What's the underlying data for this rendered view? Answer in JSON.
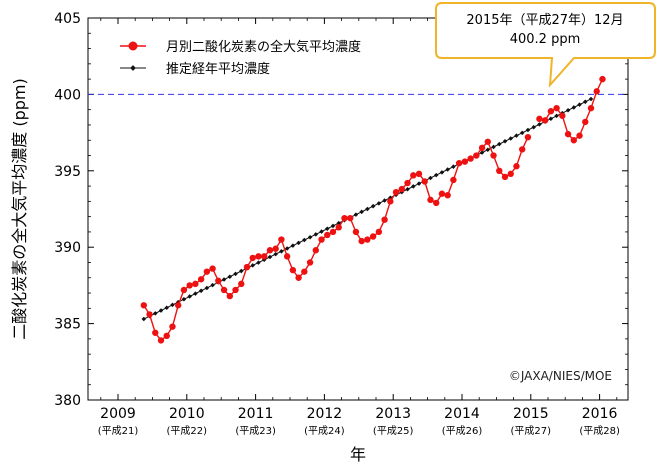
{
  "chart_data": {
    "type": "line",
    "xlabel": "年",
    "ylabel": "二酸化炭素の全大気平均濃度 (ppm)",
    "ylim": [
      380,
      405
    ],
    "yticks": [
      "380",
      "385",
      "390",
      "395",
      "400",
      "405"
    ],
    "xlim": [
      2008.8,
      2016.6
    ],
    "xticks": [
      {
        "year": 2009,
        "label": "2009",
        "era": "(平成21)"
      },
      {
        "year": 2010,
        "label": "2010",
        "era": "(平成22)"
      },
      {
        "year": 2011,
        "label": "2011",
        "era": "(平成23)"
      },
      {
        "year": 2012,
        "label": "2012",
        "era": "(平成24)"
      },
      {
        "year": 2013,
        "label": "2013",
        "era": "(平成25)"
      },
      {
        "year": 2014,
        "label": "2014",
        "era": "(平成26)"
      },
      {
        "year": 2015,
        "label": "2015",
        "era": "(平成27)"
      },
      {
        "year": 2016,
        "label": "2016",
        "era": "(平成28)"
      }
    ],
    "reference_line": {
      "y": 400,
      "color": "#3333dd",
      "style": "dashed"
    },
    "series": [
      {
        "name": "月別二酸化炭素の全大気平均濃度",
        "color": "#ee1111",
        "marker": "circle",
        "start": "2009-05",
        "values": [
          386.2,
          385.6,
          384.4,
          383.9,
          384.2,
          384.8,
          386.2,
          387.2,
          387.5,
          387.6,
          387.9,
          388.4,
          388.6,
          387.8,
          387.2,
          386.8,
          387.2,
          387.6,
          388.7,
          389.3,
          389.4,
          389.4,
          389.8,
          389.9,
          390.5,
          389.4,
          388.5,
          388.0,
          388.4,
          389.0,
          389.8,
          390.5,
          390.8,
          391.0,
          391.3,
          391.9,
          391.9,
          391.0,
          390.4,
          390.5,
          390.7,
          391.0,
          391.8,
          393.0,
          393.6,
          393.8,
          394.2,
          394.7,
          394.8,
          394.3,
          393.1,
          392.9,
          393.5,
          393.4,
          394.4,
          395.5,
          395.6,
          395.8,
          396.0,
          396.5,
          396.9,
          396.0,
          395.0,
          394.6,
          394.8,
          395.3,
          396.4,
          397.2,
          null,
          398.4,
          398.3,
          398.9,
          399.1,
          398.6,
          397.4,
          397.0,
          397.3,
          398.2,
          399.1,
          400.2,
          401.0
        ]
      },
      {
        "name": "推定経年平均濃度",
        "color": "#111111",
        "marker": "diamond",
        "start": "2009-05",
        "trend_endpoints": [
          385.3,
          399.7
        ]
      }
    ]
  },
  "callout": {
    "line1": "2015年（平成27年）12月",
    "line2": "400.2 ppm"
  },
  "credit": "©JAXA/NIES/MOE"
}
